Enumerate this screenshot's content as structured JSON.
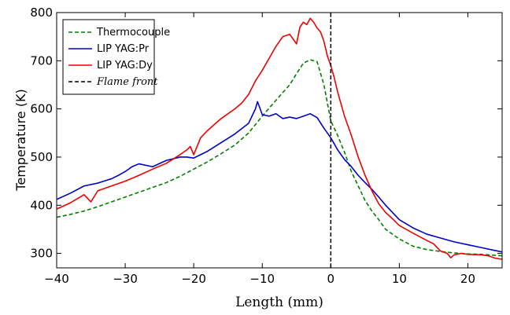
{
  "chart_data": {
    "type": "line",
    "title": "",
    "xlabel": "Length (mm)",
    "ylabel": "Temperature (K)",
    "xlim": [
      -40,
      25
    ],
    "ylim": [
      270,
      800
    ],
    "xticks": [
      -40,
      -30,
      -20,
      -10,
      0,
      10,
      20
    ],
    "xtick_labels": [
      "−40",
      "−30",
      "−20",
      "−10",
      "0",
      "10",
      "20"
    ],
    "yticks": [
      300,
      400,
      500,
      600,
      700,
      800
    ],
    "ytick_labels": [
      "300",
      "400",
      "500",
      "600",
      "700",
      "800"
    ],
    "grid": false,
    "legend": {
      "placement": "top-left",
      "entries": [
        {
          "label": "Thermocouple",
          "color": "#008000",
          "style": "dashed"
        },
        {
          "label": "LIP YAG:Pr",
          "color": "#0000cc",
          "style": "solid"
        },
        {
          "label": "LIP YAG:Dy",
          "color": "#ee0000",
          "style": "solid"
        },
        {
          "label": "Flame front",
          "color": "#000000",
          "style": "dashed",
          "italic": true
        }
      ]
    },
    "vertical_lines": [
      {
        "x": 0,
        "color": "#000000",
        "style": "dashed"
      }
    ],
    "series": [
      {
        "name": "Thermocouple",
        "color": "#008000",
        "style": "dashed",
        "points": [
          [
            -40,
            375
          ],
          [
            -38,
            381
          ],
          [
            -36,
            388
          ],
          [
            -34,
            397
          ],
          [
            -32,
            407
          ],
          [
            -30,
            417
          ],
          [
            -28,
            427
          ],
          [
            -26,
            437
          ],
          [
            -24,
            447
          ],
          [
            -22,
            460
          ],
          [
            -20,
            475
          ],
          [
            -18,
            490
          ],
          [
            -16,
            507
          ],
          [
            -14,
            525
          ],
          [
            -12,
            550
          ],
          [
            -10,
            585
          ],
          [
            -8,
            618
          ],
          [
            -6,
            650
          ],
          [
            -5,
            673
          ],
          [
            -4,
            695
          ],
          [
            -3,
            702
          ],
          [
            -2,
            698
          ],
          [
            -1,
            650
          ],
          [
            0,
            575
          ],
          [
            1,
            545
          ],
          [
            2,
            510
          ],
          [
            3,
            470
          ],
          [
            4,
            440
          ],
          [
            5,
            410
          ],
          [
            6,
            388
          ],
          [
            7,
            370
          ],
          [
            8,
            350
          ],
          [
            9,
            340
          ],
          [
            10,
            330
          ],
          [
            12,
            315
          ],
          [
            14,
            308
          ],
          [
            16,
            304
          ],
          [
            18,
            301
          ],
          [
            20,
            299
          ],
          [
            22,
            298
          ],
          [
            24,
            296
          ],
          [
            25,
            295
          ]
        ]
      },
      {
        "name": "LIP YAG:Pr",
        "color": "#0000cc",
        "style": "solid",
        "points": [
          [
            -40,
            412
          ],
          [
            -38,
            425
          ],
          [
            -36,
            440
          ],
          [
            -34,
            446
          ],
          [
            -32,
            455
          ],
          [
            -31,
            462
          ],
          [
            -30,
            470
          ],
          [
            -29,
            480
          ],
          [
            -28,
            486
          ],
          [
            -26,
            480
          ],
          [
            -24,
            493
          ],
          [
            -22,
            500
          ],
          [
            -21,
            500
          ],
          [
            -20,
            498
          ],
          [
            -18,
            512
          ],
          [
            -16,
            530
          ],
          [
            -14,
            548
          ],
          [
            -12,
            570
          ],
          [
            -11,
            600
          ],
          [
            -10.7,
            615
          ],
          [
            -10.3,
            600
          ],
          [
            -10,
            588
          ],
          [
            -9,
            585
          ],
          [
            -8,
            590
          ],
          [
            -7,
            580
          ],
          [
            -6,
            583
          ],
          [
            -5,
            580
          ],
          [
            -4,
            585
          ],
          [
            -3,
            590
          ],
          [
            -2,
            582
          ],
          [
            -1,
            560
          ],
          [
            0,
            540
          ],
          [
            1,
            515
          ],
          [
            2,
            495
          ],
          [
            3,
            480
          ],
          [
            4,
            462
          ],
          [
            5,
            447
          ],
          [
            6,
            433
          ],
          [
            7,
            417
          ],
          [
            8,
            400
          ],
          [
            9,
            385
          ],
          [
            10,
            370
          ],
          [
            12,
            353
          ],
          [
            14,
            340
          ],
          [
            16,
            332
          ],
          [
            18,
            324
          ],
          [
            20,
            318
          ],
          [
            22,
            312
          ],
          [
            24,
            306
          ],
          [
            25,
            303
          ]
        ]
      },
      {
        "name": "LIP YAG:Dy",
        "color": "#ee0000",
        "style": "solid",
        "points": [
          [
            -40,
            392
          ],
          [
            -38,
            405
          ],
          [
            -36,
            422
          ],
          [
            -35,
            407
          ],
          [
            -34,
            430
          ],
          [
            -32,
            440
          ],
          [
            -30,
            450
          ],
          [
            -28,
            462
          ],
          [
            -26,
            475
          ],
          [
            -24,
            487
          ],
          [
            -22,
            505
          ],
          [
            -21,
            515
          ],
          [
            -20.5,
            522
          ],
          [
            -20,
            505
          ],
          [
            -19,
            540
          ],
          [
            -18,
            555
          ],
          [
            -16,
            580
          ],
          [
            -14,
            600
          ],
          [
            -13,
            612
          ],
          [
            -12,
            630
          ],
          [
            -11,
            658
          ],
          [
            -10,
            680
          ],
          [
            -9,
            705
          ],
          [
            -8,
            730
          ],
          [
            -7,
            750
          ],
          [
            -6,
            755
          ],
          [
            -5,
            735
          ],
          [
            -4.5,
            770
          ],
          [
            -4,
            780
          ],
          [
            -3.5,
            775
          ],
          [
            -3,
            788
          ],
          [
            -2.5,
            780
          ],
          [
            -2,
            768
          ],
          [
            -1.5,
            760
          ],
          [
            -1,
            740
          ],
          [
            -0.5,
            710
          ],
          [
            0,
            690
          ],
          [
            0.5,
            665
          ],
          [
            1,
            635
          ],
          [
            2,
            585
          ],
          [
            3,
            545
          ],
          [
            4,
            500
          ],
          [
            5,
            462
          ],
          [
            6,
            430
          ],
          [
            7,
            403
          ],
          [
            8,
            385
          ],
          [
            9,
            372
          ],
          [
            10,
            358
          ],
          [
            12,
            342
          ],
          [
            14,
            327
          ],
          [
            15,
            320
          ],
          [
            16,
            305
          ],
          [
            17,
            300
          ],
          [
            17.5,
            291
          ],
          [
            18,
            297
          ],
          [
            19,
            300
          ],
          [
            20,
            298
          ],
          [
            22,
            297
          ],
          [
            23,
            295
          ],
          [
            24,
            290
          ],
          [
            25,
            288
          ]
        ]
      }
    ]
  }
}
